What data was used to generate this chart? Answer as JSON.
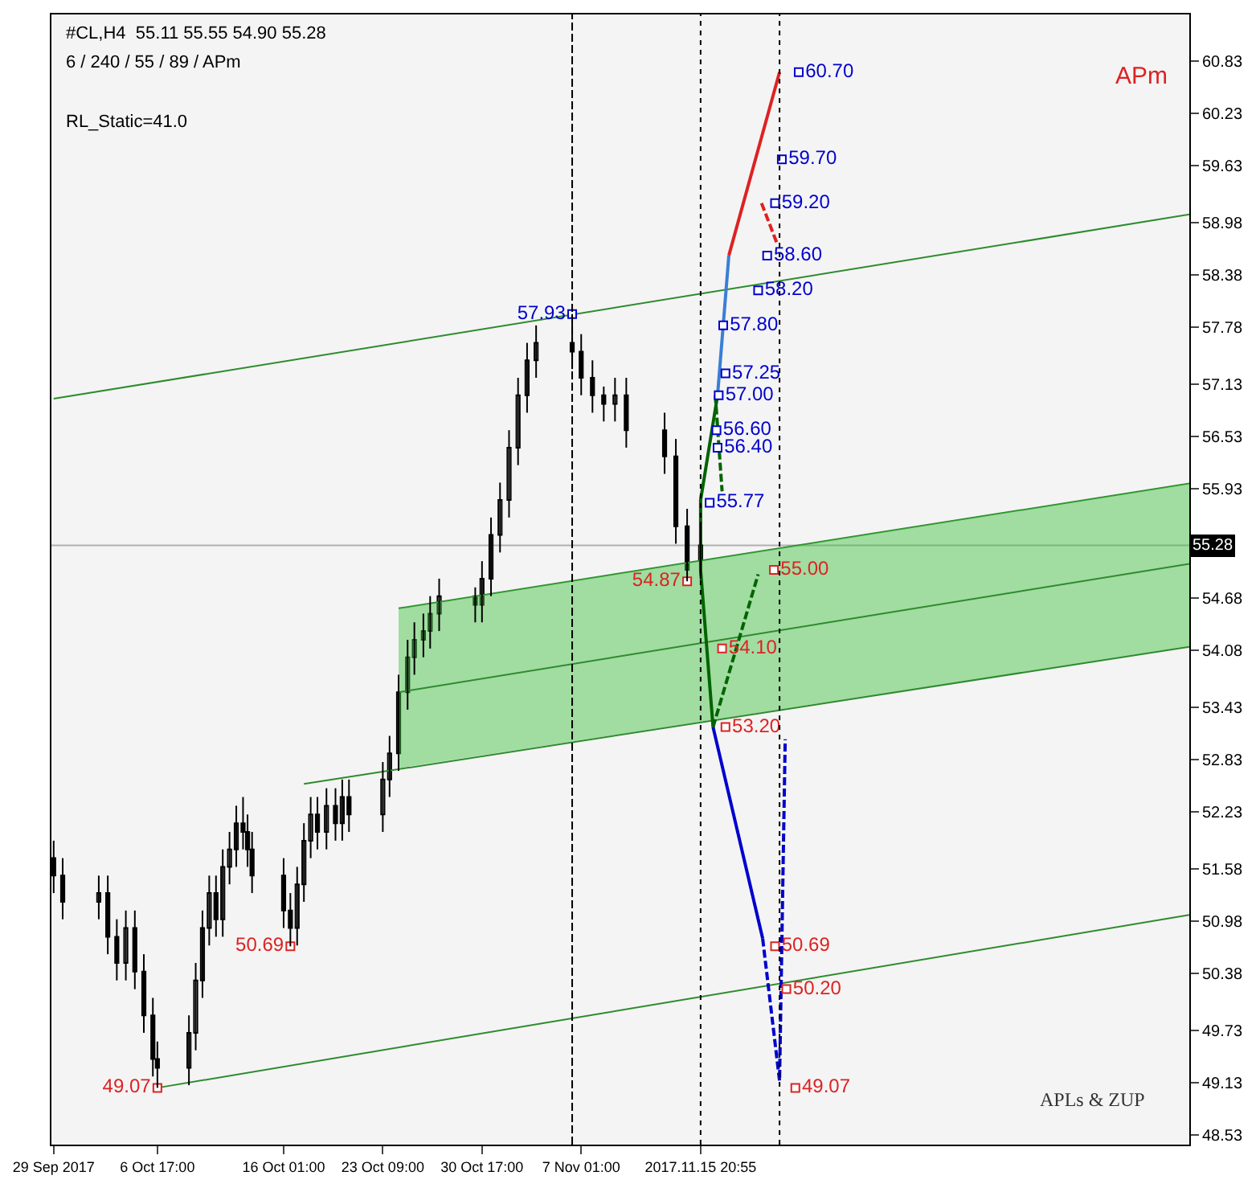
{
  "chart_data": {
    "type": "candlestick",
    "title": "#CL,H4  55.11 55.55 54.90 55.28",
    "subtitle": "6 / 240 / 55 / 89 / APm",
    "annotations": [
      "RL_Static=41.0",
      "APm",
      "APLs & ZUP"
    ],
    "x": [
      "2017-09-29T01:00",
      "2017-09-29T17:00",
      "2017-10-02T09:00",
      "2017-10-03T01:00",
      "2017-10-03T17:00",
      "2017-10-04T09:00",
      "2017-10-05T01:00",
      "2017-10-05T17:00",
      "2017-10-06T09:00",
      "2017-10-06T17:00",
      "2017-10-09T01:00",
      "2017-10-09T13:00",
      "2017-10-10T01:00",
      "2017-10-10T13:00",
      "2017-10-11T01:00",
      "2017-10-11T13:00",
      "2017-10-12T01:00",
      "2017-10-12T13:00",
      "2017-10-13T01:00",
      "2017-10-13T09:00",
      "2017-10-13T17:00",
      "2017-10-16T01:00",
      "2017-10-16T13:00",
      "2017-10-17T01:00",
      "2017-10-17T13:00",
      "2017-10-18T01:00",
      "2017-10-18T13:00",
      "2017-10-19T05:00",
      "2017-10-19T21:00",
      "2017-10-20T09:00",
      "2017-10-20T21:00",
      "2017-10-23T09:00",
      "2017-10-23T21:00",
      "2017-10-24T13:00",
      "2017-10-25T05:00",
      "2017-10-25T17:00",
      "2017-10-26T09:00",
      "2017-10-26T21:00",
      "2017-10-27T13:00",
      "2017-10-30T05:00",
      "2017-10-30T17:00",
      "2017-10-31T09:00",
      "2017-11-01T01:00",
      "2017-11-01T17:00",
      "2017-11-02T09:00",
      "2017-11-03T01:00",
      "2017-11-03T17:00",
      "2017-11-06T09:00",
      "2017-11-07T01:00",
      "2017-11-07T21:00",
      "2017-11-08T17:00",
      "2017-11-09T13:00",
      "2017-11-10T09:00",
      "2017-11-13T05:00",
      "2017-11-14T01:00",
      "2017-11-14T21:00",
      "2017-11-15T20:55"
    ],
    "ohlc": [
      [
        51.7,
        51.9,
        51.3,
        51.5
      ],
      [
        51.5,
        51.7,
        51.0,
        51.2
      ],
      [
        51.2,
        51.5,
        51.0,
        51.3
      ],
      [
        51.3,
        51.5,
        50.6,
        50.8
      ],
      [
        50.8,
        51.0,
        50.3,
        50.5
      ],
      [
        50.5,
        51.1,
        50.3,
        50.9
      ],
      [
        50.9,
        51.1,
        50.2,
        50.4
      ],
      [
        50.4,
        50.6,
        49.7,
        49.9
      ],
      [
        49.9,
        50.1,
        49.2,
        49.4
      ],
      [
        49.4,
        49.6,
        49.07,
        49.3
      ],
      [
        49.3,
        49.9,
        49.1,
        49.7
      ],
      [
        49.7,
        50.5,
        49.5,
        50.3
      ],
      [
        50.3,
        51.1,
        50.1,
        50.9
      ],
      [
        50.9,
        51.5,
        50.7,
        51.3
      ],
      [
        51.3,
        51.5,
        50.8,
        51.0
      ],
      [
        51.0,
        51.8,
        50.8,
        51.6
      ],
      [
        51.6,
        52.0,
        51.4,
        51.8
      ],
      [
        51.8,
        52.3,
        51.6,
        52.1
      ],
      [
        52.1,
        52.4,
        51.8,
        52.0
      ],
      [
        52.0,
        52.2,
        51.6,
        51.8
      ],
      [
        51.8,
        52.0,
        51.3,
        51.5
      ],
      [
        51.5,
        51.7,
        50.9,
        51.1
      ],
      [
        51.1,
        51.3,
        50.69,
        50.9
      ],
      [
        50.9,
        51.6,
        50.7,
        51.4
      ],
      [
        51.4,
        52.1,
        51.2,
        51.9
      ],
      [
        51.9,
        52.4,
        51.7,
        52.2
      ],
      [
        52.2,
        52.4,
        51.8,
        52.0
      ],
      [
        52.0,
        52.5,
        51.8,
        52.3
      ],
      [
        52.3,
        52.5,
        51.9,
        52.1
      ],
      [
        52.1,
        52.6,
        51.9,
        52.4
      ],
      [
        52.4,
        52.6,
        52.0,
        52.2
      ],
      [
        52.2,
        52.8,
        52.0,
        52.6
      ],
      [
        52.6,
        53.1,
        52.4,
        52.9
      ],
      [
        52.9,
        53.8,
        52.7,
        53.6
      ],
      [
        53.6,
        54.2,
        53.4,
        54.0
      ],
      [
        54.0,
        54.4,
        53.8,
        54.2
      ],
      [
        54.2,
        54.5,
        54.0,
        54.3
      ],
      [
        54.3,
        54.7,
        54.1,
        54.5
      ],
      [
        54.5,
        54.9,
        54.3,
        54.7
      ],
      [
        54.7,
        54.8,
        54.4,
        54.6
      ],
      [
        54.6,
        55.1,
        54.4,
        54.9
      ],
      [
        54.9,
        55.6,
        54.7,
        55.4
      ],
      [
        55.4,
        56.0,
        55.2,
        55.8
      ],
      [
        55.8,
        56.6,
        55.6,
        56.4
      ],
      [
        56.4,
        57.2,
        56.2,
        57.0
      ],
      [
        57.0,
        57.6,
        56.8,
        57.4
      ],
      [
        57.4,
        57.8,
        57.2,
        57.6
      ],
      [
        57.6,
        57.93,
        57.3,
        57.5
      ],
      [
        57.5,
        57.7,
        57.0,
        57.2
      ],
      [
        57.2,
        57.4,
        56.8,
        57.0
      ],
      [
        57.0,
        57.1,
        56.7,
        56.9
      ],
      [
        56.9,
        57.2,
        56.7,
        57.0
      ],
      [
        57.0,
        57.2,
        56.4,
        56.6
      ],
      [
        56.6,
        56.8,
        56.1,
        56.3
      ],
      [
        56.3,
        56.5,
        55.3,
        55.5
      ],
      [
        55.5,
        55.7,
        54.87,
        55.0
      ],
      [
        55.11,
        55.55,
        54.9,
        55.28
      ]
    ],
    "color": "#000000",
    "series": [
      {
        "type": "line",
        "color": "#2e8b2e",
        "x": [
          "2017-10-24T13:00",
          "2017-12-22"
        ],
        "values": [
          54.56,
          55.99
        ]
      },
      {
        "type": "line",
        "color": "#2e8b2e",
        "x": [
          "2017-10-24T13:00",
          "2017-12-22"
        ],
        "values": [
          53.6,
          55.07
        ],
        "lower": [
          52.73,
          54.12
        ],
        "upper": [
          54.56,
          55.99
        ]
      },
      {
        "type": "line",
        "color": "#2e8b2e",
        "x": [
          "2017-10-17T13:00",
          "2017-12-22"
        ],
        "values": [
          52.55,
          54.12
        ]
      },
      {
        "type": "line",
        "color": "#2e8b2e",
        "x": [
          "2017-10-06T17:00",
          "2017-12-22"
        ],
        "values": [
          49.07,
          51.05
        ]
      },
      {
        "type": "line",
        "color": "#2e8b2e",
        "x": [
          "2017-09-29T01:00",
          "2017-12-22"
        ],
        "values": [
          56.96,
          59.07
        ]
      },
      {
        "type": "line",
        "color": "#006400",
        "x": [
          "2017-11-17T03:00",
          "2017-11-15T20:55",
          "2017-11-15T20:55",
          "2017-11-16T19:00"
        ],
        "values": [
          57.0,
          55.8,
          55.0,
          53.2
        ]
      },
      {
        "type": "line",
        "color": "#006400",
        "line_style": "dashed",
        "x": [
          "2017-11-16T23:00",
          "2017-11-17T11:00"
        ],
        "values": [
          57.0,
          55.9
        ]
      },
      {
        "type": "line",
        "color": "#006400",
        "line_style": "dashed",
        "x": [
          "2017-11-16T19:00",
          "2017-11-20T03:00"
        ],
        "values": [
          53.2,
          54.95
        ]
      },
      {
        "type": "line",
        "color": "#0000cd",
        "x": [
          "2017-11-16T19:00",
          "2017-11-20T11:00"
        ],
        "values": [
          53.2,
          50.78
        ]
      },
      {
        "type": "line",
        "color": "#0000cd",
        "line_style": "dashed",
        "x": [
          "2017-11-20T11:00",
          "2017-11-21T17:00",
          "2017-11-22T03:00"
        ],
        "values": [
          50.78,
          49.15,
          53.06
        ]
      },
      {
        "type": "line",
        "color": "#3a7fd5",
        "x": [
          "2017-11-17T03:00",
          "2017-11-17T23:00"
        ],
        "values": [
          57.0,
          58.6
        ]
      },
      {
        "type": "line",
        "color": "#dd2222",
        "x": [
          "2017-11-17T23:00",
          "2017-11-21T17:00"
        ],
        "values": [
          58.6,
          60.7
        ]
      },
      {
        "type": "line",
        "color": "#dd2222",
        "line_style": "dashed",
        "x": [
          "2017-11-20T09:00",
          "2017-11-21T13:00"
        ],
        "values": [
          59.2,
          58.73
        ]
      },
      {
        "type": "scatter",
        "marker": "square",
        "color": "#0000cd",
        "x": [
          "2017-11-23T03:00",
          "2017-11-21T21:00",
          "2017-11-21T09:00",
          "2017-11-20T19:00",
          "2017-11-20T03:00",
          "2017-11-17T13:00",
          "2017-11-17T17:00",
          "2017-11-17T05:00",
          "2017-11-17T01:00",
          "2017-11-17T03:00",
          "2017-11-16T13:00",
          "2017-11-06T09:00"
        ],
        "values": [
          60.7,
          59.7,
          59.2,
          58.6,
          58.2,
          57.8,
          57.25,
          57.0,
          56.6,
          56.4,
          55.77,
          57.93
        ],
        "value_labels": [
          "60.70",
          "59.70",
          "59.20",
          "58.60",
          "58.20",
          "57.80",
          "57.25",
          "57.00",
          "56.60",
          "56.40",
          "55.77",
          "57.93"
        ]
      },
      {
        "type": "scatter",
        "marker": "square",
        "color": "#dd2222",
        "x": [
          "2017-11-21T07:00",
          "2017-11-17T11:00",
          "2017-11-17T17:00",
          "2017-11-21T09:00",
          "2017-11-22T05:00",
          "2017-11-22T21:00",
          "2017-11-14T21:00",
          "2017-10-16T13:00",
          "2017-10-06T17:00"
        ],
        "values": [
          55.0,
          54.1,
          53.2,
          50.69,
          50.2,
          49.07,
          54.87,
          50.69,
          49.07
        ],
        "value_labels": [
          "55.00",
          "54.10",
          "53.20",
          "50.69",
          "50.20",
          "49.07",
          "54.87",
          "50.69",
          "49.07"
        ]
      }
    ],
    "ref_lines": [
      {
        "axis": "y",
        "value": 55.28,
        "label": "55.28",
        "color": "#b0b0b0"
      },
      {
        "axis": "x",
        "value": "2017-11-15T20:55",
        "color": "#000000",
        "line_style": "dotted"
      },
      {
        "axis": "x",
        "value": "2017-11-21T17:00",
        "color": "#000000",
        "line_style": "dotted"
      },
      {
        "axis": "x",
        "value": "2017-11-06T09:00",
        "color": "#000000",
        "line_style": "dashed"
      }
    ],
    "xlim": [
      "2017-09-28T21:00",
      "2017-12-22"
    ],
    "xticks": [
      {
        "value": "2017-09-29T01:00",
        "label": "29 Sep 2017"
      },
      {
        "value": "2017-10-06T17:00",
        "label": "6 Oct 17:00"
      },
      {
        "value": "2017-10-16T01:00",
        "label": "16 Oct 01:00"
      },
      {
        "value": "2017-10-23T09:00",
        "label": "23 Oct 09:00"
      },
      {
        "value": "2017-10-30T17:00",
        "label": "30 Oct 17:00"
      },
      {
        "value": "2017-11-07T01:00",
        "label": "7 Nov 01:00"
      },
      {
        "value": "2017-11-15T20:55",
        "label": "2017.11.15 20:55"
      }
    ],
    "ylim": [
      48.42,
      61.36
    ],
    "yticks": [
      60.83,
      60.23,
      59.63,
      58.98,
      58.38,
      57.78,
      57.13,
      56.53,
      55.93,
      54.68,
      54.08,
      53.43,
      52.83,
      52.23,
      51.58,
      50.98,
      50.38,
      49.73,
      49.13,
      48.53
    ],
    "grid": false
  }
}
